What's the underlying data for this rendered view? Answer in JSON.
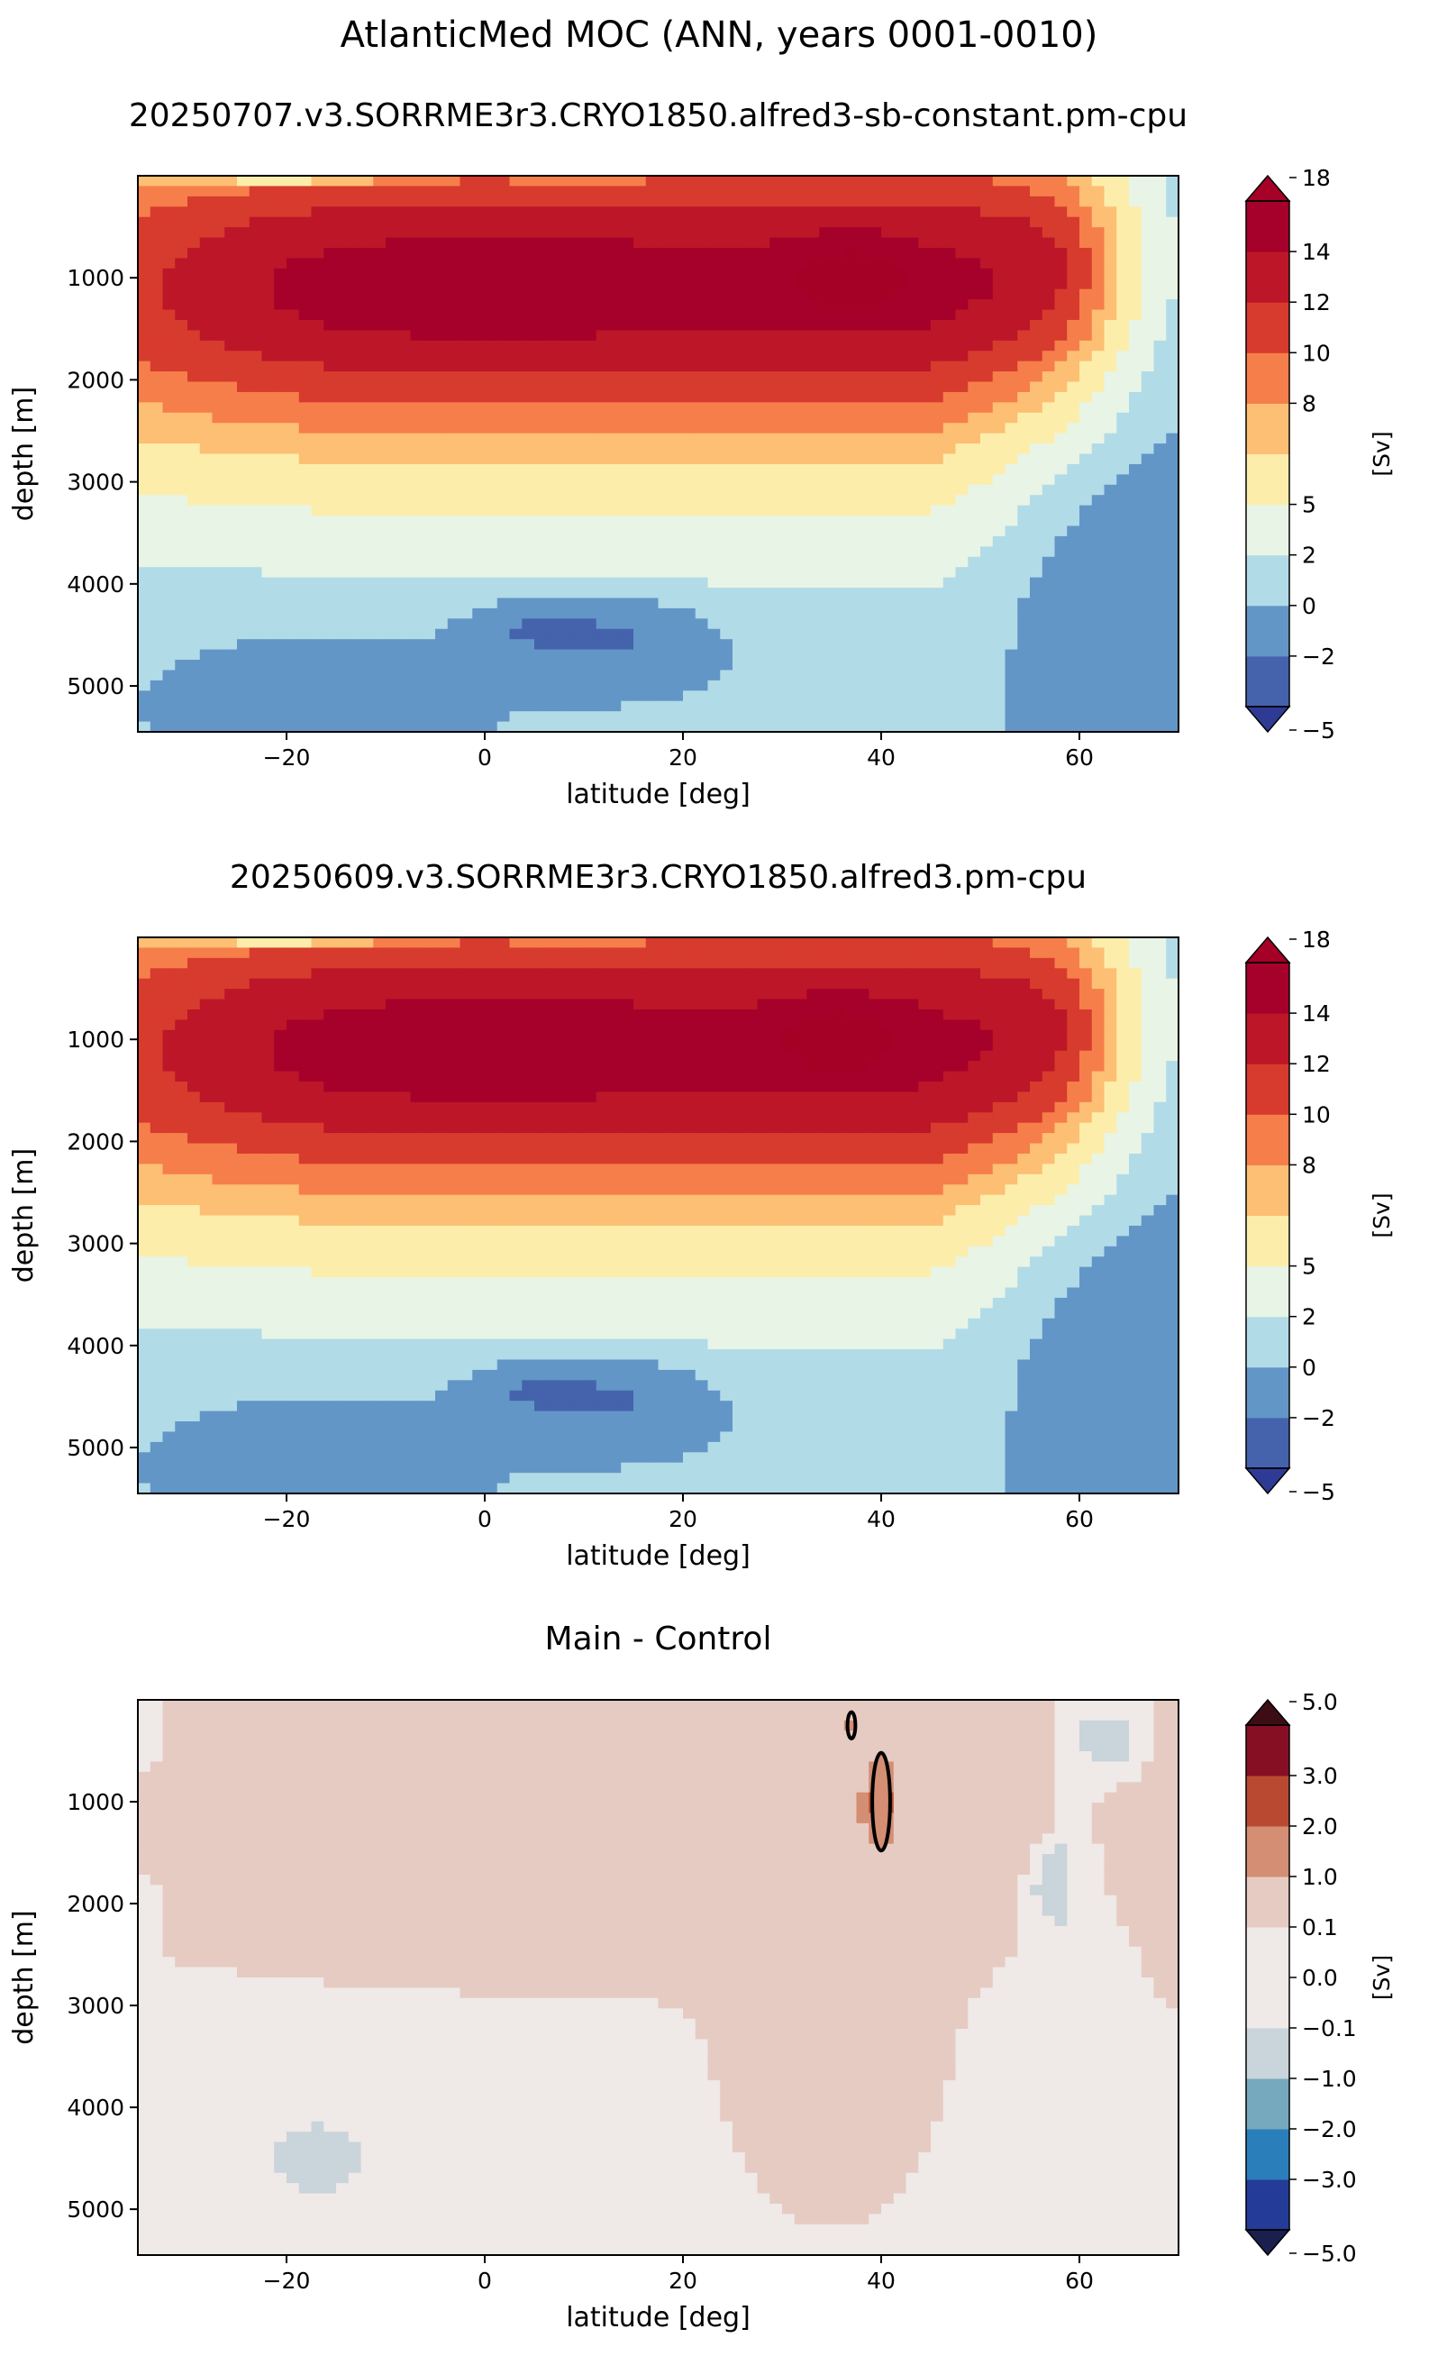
{
  "figure": {
    "suptitle": "AtlanticMed MOC (ANN, years 0001-0010)"
  },
  "chart_data": [
    {
      "type": "heatmap",
      "panel": "test",
      "title": "20250707.v3.SORRME3r3.CRYO1850.alfred3-sb-constant.pm-cpu",
      "xlabel": "latitude [deg]",
      "ylabel": "depth [m]",
      "xlim": [
        -35,
        70
      ],
      "ylim": [
        5450,
        0
      ],
      "xticks": [
        -20,
        0,
        20,
        40,
        60
      ],
      "yticks": [
        1000,
        2000,
        3000,
        4000,
        5000
      ],
      "colorbar_label": "[Sv]",
      "levels": [
        -5,
        -2,
        0,
        2,
        5,
        8,
        10,
        12,
        14,
        16,
        18
      ],
      "colorbar_ticks": [
        "18",
        "14",
        "12",
        "10",
        "8",
        "5",
        "2",
        "0",
        "−2",
        "−5"
      ],
      "colors": [
        "#4563ac",
        "#6296c7",
        "#b2dbe8",
        "#e8f4e5",
        "#fdedab",
        "#fcbf73",
        "#f67e4b",
        "#d73b2d",
        "#bc1628",
        "#a5012a"
      ],
      "extend_colors": {
        "under": "#2e3b94",
        "over": "#a50026"
      },
      "features": {
        "upper_cell_max_sv": 18,
        "upper_cell_core": {
          "lat": 37,
          "depth": 1000
        },
        "nadw_cell_depth_range": [
          0,
          3300
        ],
        "lower_cell_min_sv": -2,
        "lower_cell_core": {
          "lat": 15,
          "depth": 4500
        }
      }
    },
    {
      "type": "heatmap",
      "panel": "reference",
      "title": "20250609.v3.SORRME3r3.CRYO1850.alfred3.pm-cpu",
      "xlabel": "latitude [deg]",
      "ylabel": "depth [m]",
      "xlim": [
        -35,
        70
      ],
      "ylim": [
        5450,
        0
      ],
      "xticks": [
        -20,
        0,
        20,
        40,
        60
      ],
      "yticks": [
        1000,
        2000,
        3000,
        4000,
        5000
      ],
      "colorbar_label": "[Sv]",
      "levels": [
        -5,
        -2,
        0,
        2,
        5,
        8,
        10,
        12,
        14,
        16,
        18
      ],
      "colorbar_ticks": [
        "18",
        "14",
        "12",
        "10",
        "8",
        "5",
        "2",
        "0",
        "−2",
        "−5"
      ],
      "colors": [
        "#4563ac",
        "#6296c7",
        "#b2dbe8",
        "#e8f4e5",
        "#fdedab",
        "#fcbf73",
        "#f67e4b",
        "#d73b2d",
        "#bc1628",
        "#a5012a"
      ],
      "extend_colors": {
        "under": "#2e3b94",
        "over": "#a50026"
      },
      "features": {
        "upper_cell_max_sv": 18,
        "upper_cell_core": {
          "lat": 36,
          "depth": 1000
        },
        "nadw_cell_depth_range": [
          0,
          3300
        ],
        "lower_cell_min_sv": -2,
        "lower_cell_core": {
          "lat": 15,
          "depth": 4500
        }
      }
    },
    {
      "type": "heatmap",
      "panel": "diff",
      "title": "Main - Control",
      "xlabel": "latitude [deg]",
      "ylabel": "depth [m]",
      "xlim": [
        -35,
        70
      ],
      "ylim": [
        5450,
        0
      ],
      "xticks": [
        -20,
        0,
        20,
        40,
        60
      ],
      "yticks": [
        1000,
        2000,
        3000,
        4000,
        5000
      ],
      "colorbar_label": "[Sv]",
      "levels": [
        -5,
        -3,
        -2,
        -1,
        -0.1,
        0,
        0.1,
        1,
        2,
        3,
        5
      ],
      "colorbar_ticks": [
        "5.0",
        "3.0",
        "2.0",
        "1.0",
        "0.1",
        "0.0",
        "−0.1",
        "−1.0",
        "−2.0",
        "−3.0",
        "−5.0"
      ],
      "colors": [
        "#253b98",
        "#2a7fbb",
        "#76a9be",
        "#c9d4db",
        "#efe9e8",
        "#efe9e8",
        "#e6cbc2",
        "#d38e73",
        "#b94a31",
        "#860f24"
      ],
      "extend_colors": {
        "under": "#1a1f4e",
        "over": "#3d0d15"
      },
      "features": {
        "background_band_sv": [
          0,
          0.1
        ],
        "positive_band_sv": [
          0.1,
          1.0
        ],
        "positive_max_sv": 2.0,
        "positive_max_at": {
          "lat": 40,
          "depth": 1000
        },
        "negative_patches_sv": [
          -1.0,
          -0.1
        ]
      }
    }
  ],
  "tick_labels": {
    "x": [
      "−20",
      "0",
      "20",
      "40",
      "60"
    ],
    "y": [
      "1000",
      "2000",
      "3000",
      "4000",
      "5000"
    ]
  }
}
